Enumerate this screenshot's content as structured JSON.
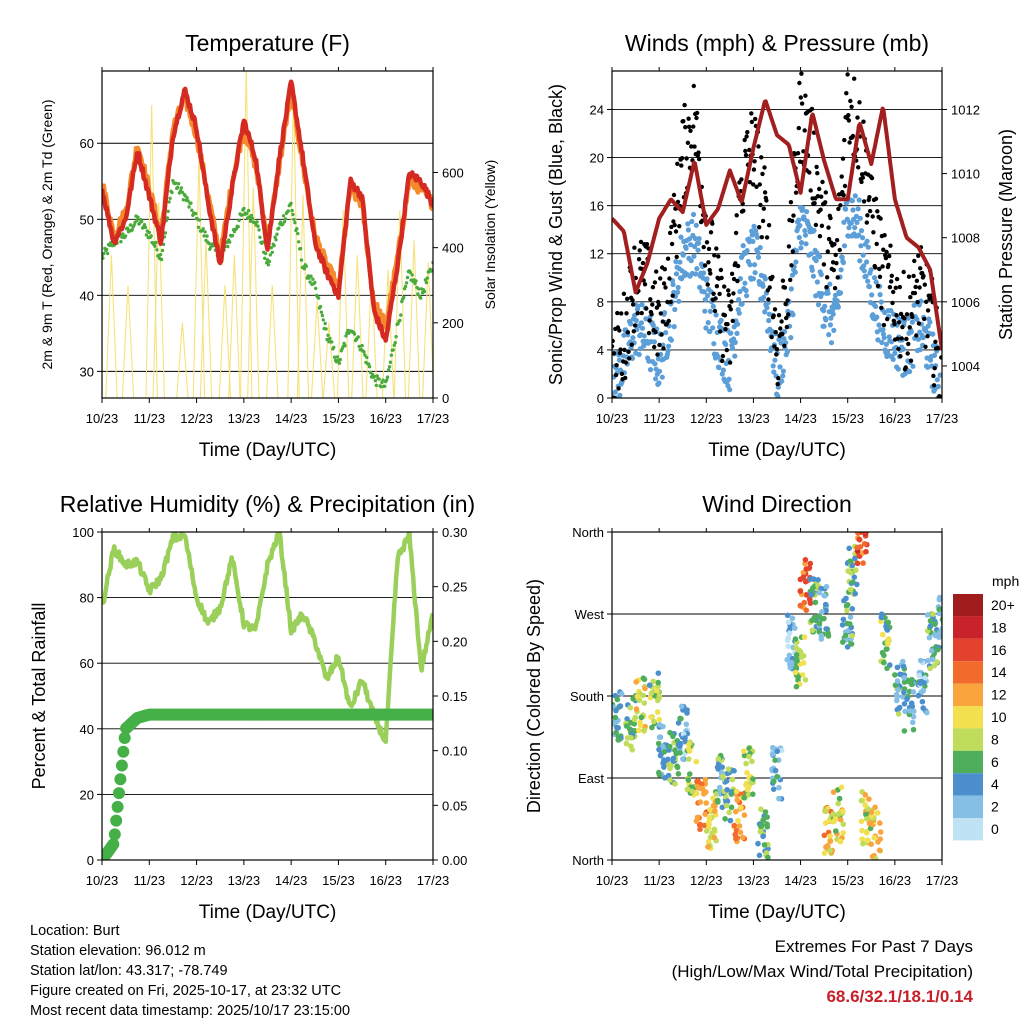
{
  "x_ticks": [
    "10/23",
    "11/23",
    "12/23",
    "13/23",
    "14/23",
    "15/23",
    "16/23",
    "17/23"
  ],
  "xlabel": "Time (Day/UTC)",
  "colors": {
    "temp_2m": "#d42a22",
    "temp_9m": "#f48a2c",
    "dewpoint": "#4aaa3c",
    "solar": "#f6e27a",
    "wind": "#5c9fd8",
    "gust": "#000000",
    "pressure": "#a1201f",
    "rh": "#9acf5a",
    "precip": "#46b048"
  },
  "chart_data": [
    {
      "type": "line",
      "title": "Temperature (F)",
      "ylabel": "2m & 9m T (Red, Orange) & 2m Td (Green)",
      "y2label": "Solar Insolation (Yellow)",
      "ylim": [
        26.5,
        69.5
      ],
      "y2lim": [
        0,
        870
      ],
      "yticks": [
        "30",
        "40",
        "50",
        "60"
      ],
      "y2ticks": [
        "0",
        "200",
        "400",
        "600"
      ],
      "x": [
        0,
        0.25,
        0.5,
        0.75,
        1,
        1.25,
        1.5,
        1.75,
        2,
        2.25,
        2.5,
        2.75,
        3,
        3.25,
        3.5,
        3.75,
        4,
        4.25,
        4.5,
        4.75,
        5,
        5.25,
        5.5,
        5.75,
        6,
        6.25,
        6.5,
        6.75,
        7
      ],
      "series": [
        {
          "name": "2m T (Red)",
          "values": [
            54,
            47,
            50,
            59,
            53,
            47,
            61,
            67,
            62,
            52,
            44,
            54,
            63,
            58,
            46,
            58,
            68,
            58,
            47,
            43,
            40,
            55,
            53,
            38,
            34,
            44,
            56,
            55,
            52
          ]
        },
        {
          "name": "9m T (Orange)",
          "values": [
            55,
            48,
            51,
            60,
            54,
            48,
            62,
            66,
            61,
            53,
            45,
            55,
            62,
            57,
            47,
            57,
            67,
            57,
            48,
            44,
            41,
            54,
            52,
            39,
            36,
            45,
            55,
            54,
            52
          ]
        },
        {
          "name": "2m Td (Green)",
          "values": [
            45,
            47,
            48,
            50,
            48,
            45,
            55,
            53,
            50,
            47,
            45,
            48,
            51,
            50,
            44,
            49,
            52,
            44,
            41,
            35,
            31,
            36,
            33,
            29,
            28,
            36,
            43,
            40,
            44
          ]
        },
        {
          "name": "Solar Insolation (Yellow)",
          "values": [
            0,
            300,
            0,
            750,
            0,
            0,
            820,
            0,
            0,
            0,
            0,
            0,
            850,
            0,
            0,
            0,
            0,
            750,
            0,
            0,
            0,
            0,
            0,
            0,
            0,
            0,
            0,
            700,
            0
          ]
        }
      ]
    },
    {
      "type": "line",
      "title": "Winds (mph) & Pressure (mb)",
      "ylabel": "Sonic/Prop Wind & Gust (Blue, Black)",
      "y2label": "Station Pressure (Maroon)",
      "ylim": [
        0,
        27.2
      ],
      "y2lim": [
        1003.0,
        1013.2
      ],
      "yticks": [
        "0",
        "4",
        "8",
        "12",
        "16",
        "20",
        "24"
      ],
      "y2ticks": [
        "1004",
        "1006",
        "1008",
        "1010",
        "1012"
      ],
      "x": [
        0,
        0.25,
        0.5,
        0.75,
        1,
        1.25,
        1.5,
        1.75,
        2,
        2.25,
        2.5,
        2.75,
        3,
        3.25,
        3.5,
        3.75,
        4,
        4.25,
        4.5,
        4.75,
        5,
        5.25,
        5.5,
        5.75,
        6,
        6.25,
        6.5,
        6.75,
        7
      ],
      "series": [
        {
          "name": "Wind (Blue)",
          "values": [
            1,
            3,
            6,
            5,
            3,
            7,
            12,
            13,
            8,
            5,
            3,
            10,
            12,
            9,
            2,
            6,
            15,
            12,
            8,
            6,
            16,
            14,
            9,
            6,
            5,
            4,
            6,
            4,
            0
          ]
        },
        {
          "name": "Gust (Black)",
          "values": [
            2,
            5,
            10,
            9,
            6,
            11,
            20,
            23,
            14,
            8,
            5,
            18,
            21,
            15,
            4,
            10,
            24,
            20,
            14,
            10,
            25,
            22,
            16,
            10,
            8,
            6,
            9,
            7,
            1
          ]
        },
        {
          "name": "Station Pressure (Maroon)",
          "values": [
            1008.6,
            1008.2,
            1006.3,
            1007.2,
            1008.6,
            1009.2,
            1008.8,
            1010.4,
            1008.4,
            1008.9,
            1010.1,
            1009.1,
            1010.8,
            1012.3,
            1011.2,
            1010.9,
            1009.4,
            1011.9,
            1010.4,
            1009.2,
            1009.2,
            1011.6,
            1010.3,
            1012.1,
            1009.2,
            1008.0,
            1007.7,
            1007.0,
            1004.5
          ]
        }
      ]
    },
    {
      "type": "line",
      "title": "Relative Humidity (%) & Precipitation (in)",
      "ylabel": "Percent & Total Rainfall",
      "ylim": [
        0,
        100
      ],
      "y2lim": [
        0,
        0.3
      ],
      "yticks": [
        "0",
        "20",
        "40",
        "60",
        "80",
        "100"
      ],
      "y2ticks": [
        "0.00",
        "0.05",
        "0.10",
        "0.15",
        "0.20",
        "0.25",
        "0.30"
      ],
      "x": [
        0,
        0.25,
        0.5,
        0.75,
        1,
        1.25,
        1.5,
        1.75,
        2,
        2.25,
        2.5,
        2.75,
        3,
        3.25,
        3.5,
        3.75,
        4,
        4.25,
        4.5,
        4.75,
        5,
        5.25,
        5.5,
        5.75,
        6,
        6.25,
        6.5,
        6.75,
        7
      ],
      "series": [
        {
          "name": "RH (Light green)",
          "values": [
            77,
            95,
            90,
            91,
            82,
            86,
            98,
            99,
            80,
            72,
            77,
            92,
            72,
            70,
            90,
            100,
            70,
            75,
            67,
            55,
            62,
            46,
            55,
            44,
            36,
            92,
            99,
            58,
            75
          ]
        },
        {
          "name": "Total Precipitation (Green)",
          "values": [
            0,
            0.015,
            0.12,
            0.13,
            0.133,
            0.133,
            0.133,
            0.133,
            0.133,
            0.133,
            0.133,
            0.133,
            0.133,
            0.133,
            0.133,
            0.133,
            0.133,
            0.133,
            0.133,
            0.133,
            0.133,
            0.133,
            0.133,
            0.133,
            0.133,
            0.133,
            0.133,
            0.133,
            0.133
          ]
        }
      ]
    },
    {
      "type": "scatter",
      "title": "Wind Direction",
      "ylabel": "Direction (Colored By Speed)",
      "yticks": [
        "North",
        "East",
        "South",
        "West",
        "North"
      ],
      "ylim": [
        0,
        360
      ],
      "colorbar_title": "mph",
      "colorbar_labels": [
        "20+",
        "18",
        "16",
        "14",
        "12",
        "10",
        "8",
        "6",
        "4",
        "2",
        "0"
      ],
      "colorbar_colors": [
        "#a01c1c",
        "#c9222a",
        "#e3432e",
        "#f26b2d",
        "#f9a43c",
        "#f2e050",
        "#bfdc5a",
        "#4fae5b",
        "#4b8fcc",
        "#86bfe6",
        "#bfe3f5"
      ],
      "x": [
        0.1,
        0.4,
        0.6,
        0.9,
        1.1,
        1.3,
        1.5,
        1.7,
        1.9,
        2.1,
        2.3,
        2.5,
        2.7,
        2.9,
        3.2,
        3.5,
        3.8,
        4.0,
        4.1,
        4.3,
        4.5,
        4.6,
        4.8,
        5.0,
        5.1,
        5.3,
        5.4,
        5.6,
        5.8,
        6.1,
        6.3,
        6.6,
        6.8,
        6.95
      ],
      "directions": [
        160,
        150,
        170,
        175,
        120,
        110,
        140,
        100,
        60,
        40,
        85,
        70,
        50,
        95,
        30,
        95,
        240,
        220,
        300,
        280,
        270,
        30,
        50,
        260,
        320,
        350,
        45,
        30,
        240,
        190,
        170,
        190,
        240,
        260
      ],
      "speeds": [
        4,
        6,
        9,
        7,
        4,
        6,
        3,
        8,
        14,
        10,
        5,
        6,
        12,
        8,
        6,
        3,
        2,
        8,
        14,
        6,
        4,
        11,
        9,
        5,
        6,
        15,
        9,
        10,
        7,
        5,
        4,
        3,
        5,
        4
      ]
    }
  ],
  "info": {
    "location": "Location: Burt",
    "elevation": "Station elevation: 96.012 m",
    "latlon": "Station lat/lon: 43.317; -78.749",
    "created": "Figure created on Fri, 2025-10-17, at 23:32 UTC",
    "recent": "Most recent data timestamp: 2025/10/17 23:15:00"
  },
  "extremes": {
    "title": "Extremes For Past 7 Days",
    "subtitle": "(High/Low/Max Wind/Total Precipitation)",
    "values": "68.6/32.1/18.1/0.14"
  }
}
